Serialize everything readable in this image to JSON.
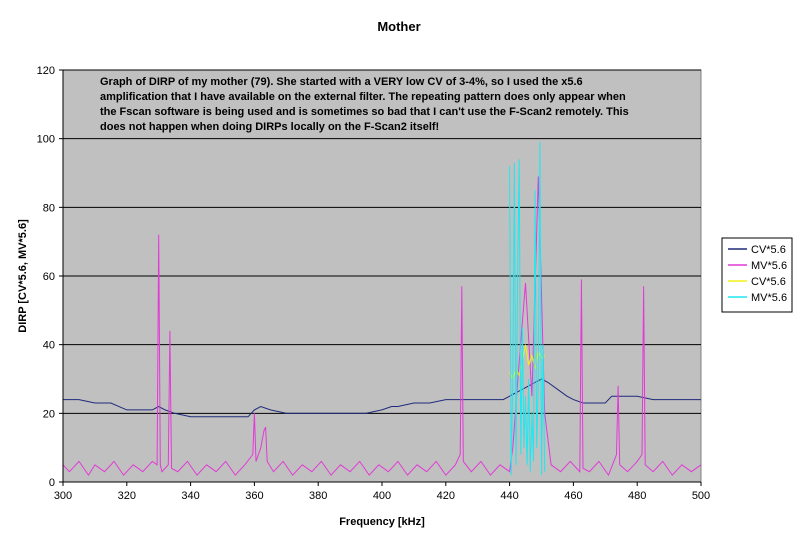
{
  "chart_data": {
    "type": "line",
    "title": "Mother",
    "xlabel": "Frequency [kHz]",
    "ylabel": "DIRP [CV*5.6, MV*5.6]",
    "xlim": [
      300,
      500
    ],
    "ylim": [
      0,
      120
    ],
    "x_ticks": [
      300,
      320,
      340,
      360,
      380,
      400,
      420,
      440,
      460,
      480,
      500
    ],
    "y_ticks": [
      0,
      20,
      40,
      60,
      80,
      100,
      120
    ],
    "grid": "horizontal major gridlines",
    "plot_background": "#c0c0c0",
    "legend_position": "right",
    "annotation": [
      "Graph of DIRP of my mother (79). She started with a VERY low CV of 3-4%, so I used the x5.6",
      "amplification that I have available on the external filter. The repeating pattern does only appear when",
      "the Fscan software is being used and is sometimes so bad that I can't use the F-Scan2 remotely. This",
      "does not happen when doing DIRPs locally on the F-Scan2 itself!"
    ],
    "series": [
      {
        "name": "CV*5.6",
        "color": "#1f2a7a",
        "x": [
          300,
          305,
          310,
          315,
          320,
          325,
          328,
          330,
          332,
          335,
          340,
          345,
          350,
          355,
          358,
          360,
          362,
          365,
          370,
          375,
          380,
          385,
          390,
          395,
          400,
          403,
          405,
          410,
          415,
          420,
          425,
          430,
          435,
          438,
          440,
          442,
          444,
          446,
          448,
          450,
          452,
          455,
          458,
          460,
          463,
          465,
          468,
          470,
          472,
          475,
          478,
          480,
          485,
          490,
          495,
          500
        ],
        "values": [
          24,
          24,
          23,
          23,
          21,
          21,
          21,
          22,
          21,
          20,
          19,
          19,
          19,
          19,
          19,
          21,
          22,
          21,
          20,
          20,
          20,
          20,
          20,
          20,
          21,
          22,
          22,
          23,
          23,
          24,
          24,
          24,
          24,
          24,
          25,
          26,
          27,
          28,
          29,
          30,
          29,
          27,
          25,
          24,
          23,
          23,
          23,
          23,
          25,
          25,
          25,
          25,
          24,
          24,
          24,
          24
        ]
      },
      {
        "name": "MV*5.6",
        "color": "#e23ad6",
        "x": [
          300,
          302,
          305,
          308,
          310,
          313,
          316,
          319,
          322,
          325,
          328,
          329.5,
          330,
          330.5,
          331,
          333,
          333.5,
          334,
          336,
          339,
          342,
          345,
          348,
          351,
          354,
          357,
          359.5,
          360,
          360.5,
          362,
          363,
          363.5,
          364,
          366,
          369,
          372,
          375,
          378,
          381,
          384,
          387,
          390,
          393,
          396,
          399,
          402,
          405,
          408,
          411,
          414,
          417,
          420,
          423,
          424.5,
          425,
          425.5,
          428,
          431,
          434,
          437,
          440,
          441,
          443,
          445,
          447,
          449,
          451,
          453,
          456,
          459,
          462,
          462.5,
          463,
          465,
          468,
          471,
          473.5,
          474,
          474.5,
          477,
          480,
          481.5,
          482,
          482.5,
          485,
          488,
          491,
          494,
          497,
          500
        ],
        "values": [
          5,
          3,
          6,
          2,
          5,
          3,
          6,
          2,
          5,
          3,
          6,
          5,
          72,
          5,
          3,
          5,
          44,
          4,
          3,
          6,
          2,
          5,
          3,
          6,
          2,
          5,
          8,
          20,
          6,
          10,
          15,
          16,
          6,
          3,
          6,
          2,
          5,
          3,
          6,
          2,
          5,
          3,
          6,
          2,
          5,
          3,
          6,
          2,
          5,
          3,
          6,
          2,
          5,
          8,
          57,
          6,
          3,
          6,
          2,
          5,
          3,
          10,
          35,
          58,
          25,
          89,
          20,
          5,
          3,
          6,
          3,
          59,
          4,
          3,
          6,
          2,
          8,
          28,
          5,
          3,
          6,
          8,
          57,
          5,
          3,
          6,
          2,
          5,
          3,
          5
        ]
      },
      {
        "name": "CV*5.6",
        "color": "#f0f018",
        "x": [
          440,
          441,
          442,
          443,
          444,
          445,
          446,
          447,
          448,
          449,
          450,
          451
        ],
        "values": [
          32,
          30,
          33,
          31,
          35,
          40,
          34,
          37,
          33,
          38,
          36,
          37
        ]
      },
      {
        "name": "MV*5.6",
        "color": "#1ee8f0",
        "x": [
          440,
          440.5,
          441,
          441.5,
          442,
          442.5,
          443,
          443.5,
          444,
          444.5,
          445,
          445.5,
          446,
          446.5,
          447,
          447.5,
          448,
          448.5,
          449,
          449.5,
          450,
          450.5,
          451
        ],
        "values": [
          92,
          2,
          30,
          93,
          5,
          60,
          94,
          8,
          45,
          10,
          25,
          5,
          30,
          3,
          20,
          6,
          85,
          10,
          30,
          99,
          2,
          40,
          3
        ]
      }
    ]
  }
}
